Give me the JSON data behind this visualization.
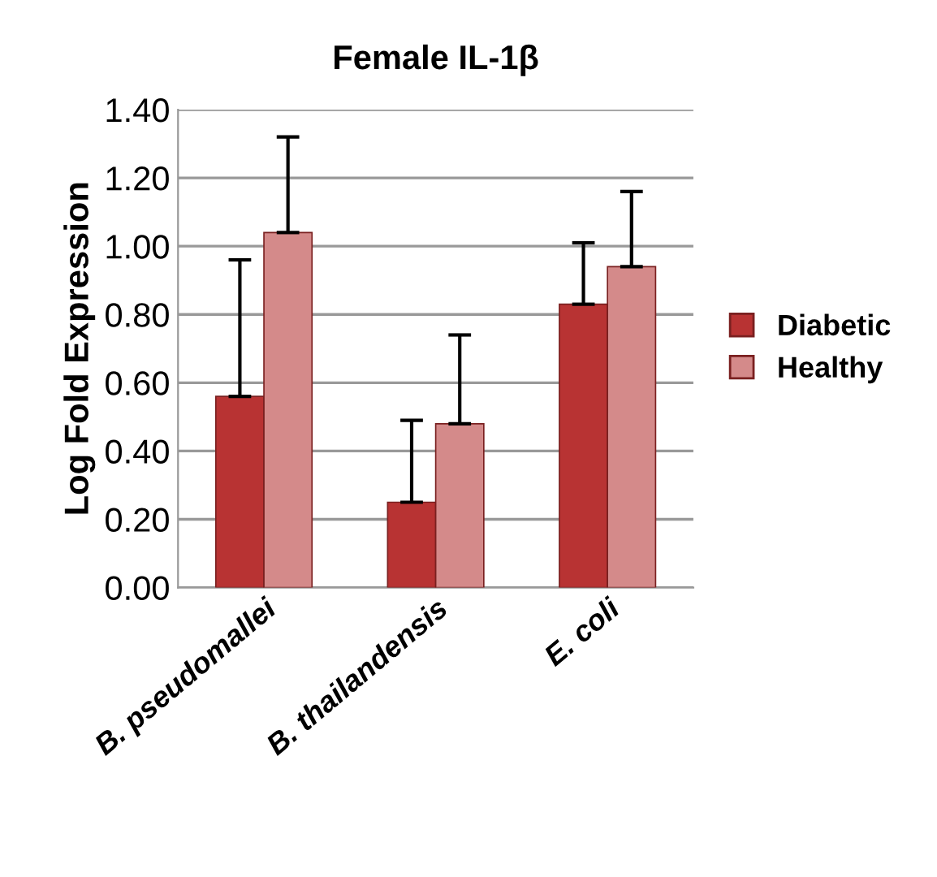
{
  "chart_data": {
    "type": "bar",
    "title": "Female IL-1β",
    "ylabel": "Log Fold Expression",
    "categories": [
      "B. pseudomallei",
      "B. thailandensis",
      "E. coli"
    ],
    "series": [
      {
        "name": "Diabetic",
        "color": "#b83333",
        "values": [
          0.56,
          0.25,
          0.83
        ],
        "errors": [
          [
            0.56,
            0.96
          ],
          [
            0.25,
            0.49
          ],
          [
            0.83,
            1.01
          ]
        ]
      },
      {
        "name": "Healthy",
        "color": "#d48a8a",
        "values": [
          1.04,
          0.48,
          0.94
        ],
        "errors": [
          [
            1.04,
            1.32
          ],
          [
            0.48,
            0.74
          ],
          [
            0.94,
            1.16
          ]
        ]
      }
    ],
    "ylim": [
      0,
      1.4
    ],
    "yticks": [
      {
        "value": 0,
        "label": "0.00"
      },
      {
        "value": 0.2,
        "label": "0.20"
      },
      {
        "value": 0.4,
        "label": "0.40"
      },
      {
        "value": 0.6,
        "label": "0.60"
      },
      {
        "value": 0.8,
        "label": "0.80"
      },
      {
        "value": 1.0,
        "label": "1.00"
      },
      {
        "value": 1.2,
        "label": "1.20"
      },
      {
        "value": 1.4,
        "label": "1.40"
      }
    ],
    "grid": "y",
    "legend": "right"
  }
}
